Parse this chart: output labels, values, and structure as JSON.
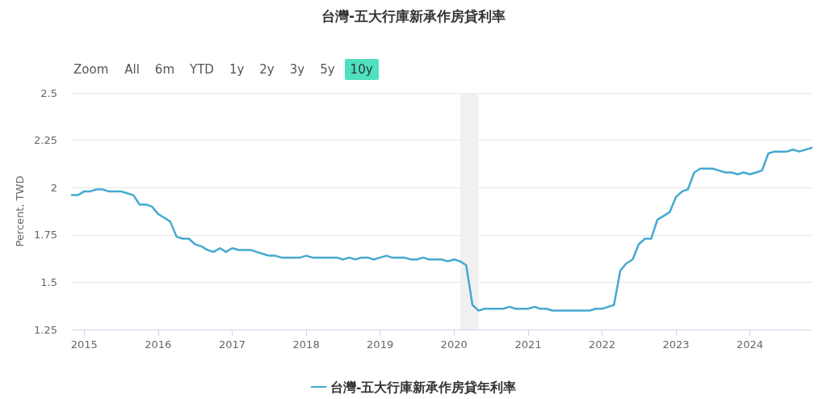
{
  "chart_data": {
    "type": "line",
    "title": "台灣-五大行庫新承作房貸利率",
    "ylabel": "Percent, TWD",
    "annotations": [
      "Zoom",
      "All",
      "6m",
      "YTD",
      "1y",
      "2y",
      "3y",
      "5y",
      "10y"
    ],
    "x": [
      "2014-11",
      "2014-12",
      "2015-01",
      "2015-02",
      "2015-03",
      "2015-04",
      "2015-05",
      "2015-06",
      "2015-07",
      "2015-08",
      "2015-09",
      "2015-10",
      "2015-11",
      "2015-12",
      "2016-01",
      "2016-02",
      "2016-03",
      "2016-04",
      "2016-05",
      "2016-06",
      "2016-07",
      "2016-08",
      "2016-09",
      "2016-10",
      "2016-11",
      "2016-12",
      "2017-01",
      "2017-02",
      "2017-03",
      "2017-04",
      "2017-05",
      "2017-06",
      "2017-07",
      "2017-08",
      "2017-09",
      "2017-10",
      "2017-11",
      "2017-12",
      "2018-01",
      "2018-02",
      "2018-03",
      "2018-04",
      "2018-05",
      "2018-06",
      "2018-07",
      "2018-08",
      "2018-09",
      "2018-10",
      "2018-11",
      "2018-12",
      "2019-01",
      "2019-02",
      "2019-03",
      "2019-04",
      "2019-05",
      "2019-06",
      "2019-07",
      "2019-08",
      "2019-09",
      "2019-10",
      "2019-11",
      "2019-12",
      "2020-01",
      "2020-02",
      "2020-03",
      "2020-04",
      "2020-05",
      "2020-06",
      "2020-07",
      "2020-08",
      "2020-09",
      "2020-10",
      "2020-11",
      "2020-12",
      "2021-01",
      "2021-02",
      "2021-03",
      "2021-04",
      "2021-05",
      "2021-06",
      "2021-07",
      "2021-08",
      "2021-09",
      "2021-10",
      "2021-11",
      "2021-12",
      "2022-01",
      "2022-02",
      "2022-03",
      "2022-04",
      "2022-05",
      "2022-06",
      "2022-07",
      "2022-08",
      "2022-09",
      "2022-10",
      "2022-11",
      "2022-12",
      "2023-01",
      "2023-02",
      "2023-03",
      "2023-04",
      "2023-05",
      "2023-06",
      "2023-07",
      "2023-08",
      "2023-09",
      "2023-10",
      "2023-11",
      "2023-12",
      "2024-01",
      "2024-02",
      "2024-03",
      "2024-04",
      "2024-05",
      "2024-06",
      "2024-07",
      "2024-08",
      "2024-09",
      "2024-10",
      "2024-11"
    ],
    "series": [
      {
        "name": "台灣-五大行庫新承作房貸年利率",
        "color": "#45a9d1",
        "values": [
          1.96,
          1.96,
          1.98,
          1.98,
          1.99,
          1.99,
          1.98,
          1.98,
          1.98,
          1.97,
          1.96,
          1.91,
          1.91,
          1.9,
          1.86,
          1.84,
          1.82,
          1.74,
          1.73,
          1.73,
          1.7,
          1.69,
          1.67,
          1.66,
          1.68,
          1.66,
          1.68,
          1.67,
          1.67,
          1.67,
          1.66,
          1.65,
          1.64,
          1.64,
          1.63,
          1.63,
          1.63,
          1.63,
          1.64,
          1.63,
          1.63,
          1.63,
          1.63,
          1.63,
          1.62,
          1.63,
          1.62,
          1.63,
          1.63,
          1.62,
          1.63,
          1.64,
          1.63,
          1.63,
          1.63,
          1.62,
          1.62,
          1.63,
          1.62,
          1.62,
          1.62,
          1.61,
          1.62,
          1.61,
          1.59,
          1.38,
          1.35,
          1.36,
          1.36,
          1.36,
          1.36,
          1.37,
          1.36,
          1.36,
          1.36,
          1.37,
          1.36,
          1.36,
          1.35,
          1.35,
          1.35,
          1.35,
          1.35,
          1.35,
          1.35,
          1.36,
          1.36,
          1.37,
          1.38,
          1.56,
          1.6,
          1.62,
          1.7,
          1.73,
          1.73,
          1.83,
          1.85,
          1.87,
          1.95,
          1.98,
          1.99,
          2.08,
          2.1,
          2.1,
          2.1,
          2.09,
          2.08,
          2.08,
          2.07,
          2.08,
          2.07,
          2.08,
          2.09,
          2.18,
          2.19,
          2.19,
          2.19,
          2.2,
          2.19,
          2.2,
          2.21
        ]
      }
    ],
    "xlim": [
      "2014-11",
      "2024-11"
    ],
    "xticks": [
      "2015",
      "2016",
      "2017",
      "2018",
      "2019",
      "2020",
      "2021",
      "2022",
      "2023",
      "2024"
    ],
    "ylim": [
      1.25,
      2.5
    ],
    "yticks": [
      1.25,
      1.5,
      1.75,
      2,
      2.25,
      2.5
    ],
    "bands": [
      {
        "axis": "x",
        "from": "2020-02",
        "to": "2020-05",
        "color": "#f0f0f0"
      }
    ],
    "grid": "y",
    "legend": "bottom",
    "marker": "none"
  }
}
